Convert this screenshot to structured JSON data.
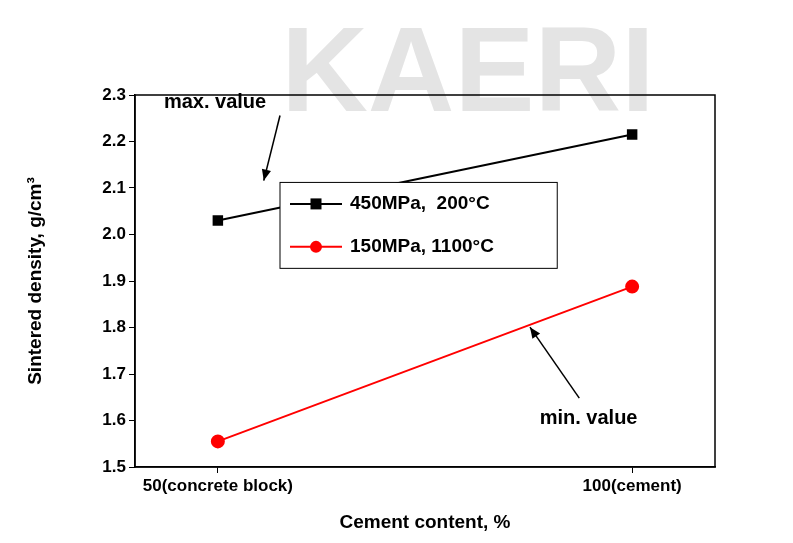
{
  "chart_data": {
    "type": "line",
    "x_label": "Cement content, %",
    "y_label": "Sintered density, g/cm³",
    "x": [
      50,
      100
    ],
    "series": [
      {
        "name": "450MPa,  200°C",
        "color": "#000000",
        "marker": "square",
        "values": [
          2.03,
          2.215
        ]
      },
      {
        "name": "150MPa, 1100°C",
        "color": "#ff0000",
        "marker": "circle",
        "values": [
          1.555,
          1.888
        ]
      }
    ],
    "xlim": [
      40,
      110
    ],
    "xticks": [
      {
        "value": 50,
        "label": "50(concrete block)"
      },
      {
        "value": 100,
        "label": "100(cement)"
      }
    ],
    "ylim": [
      1.5,
      2.3
    ],
    "yticks": [
      1.5,
      1.6,
      1.7,
      1.8,
      1.9,
      {
        "value": 2,
        "label": "2.0"
      },
      2.1,
      2.2,
      2.3
    ],
    "grid": false,
    "legend": "center",
    "annotations": [
      "max. value",
      "min. value",
      "KAERI"
    ]
  }
}
